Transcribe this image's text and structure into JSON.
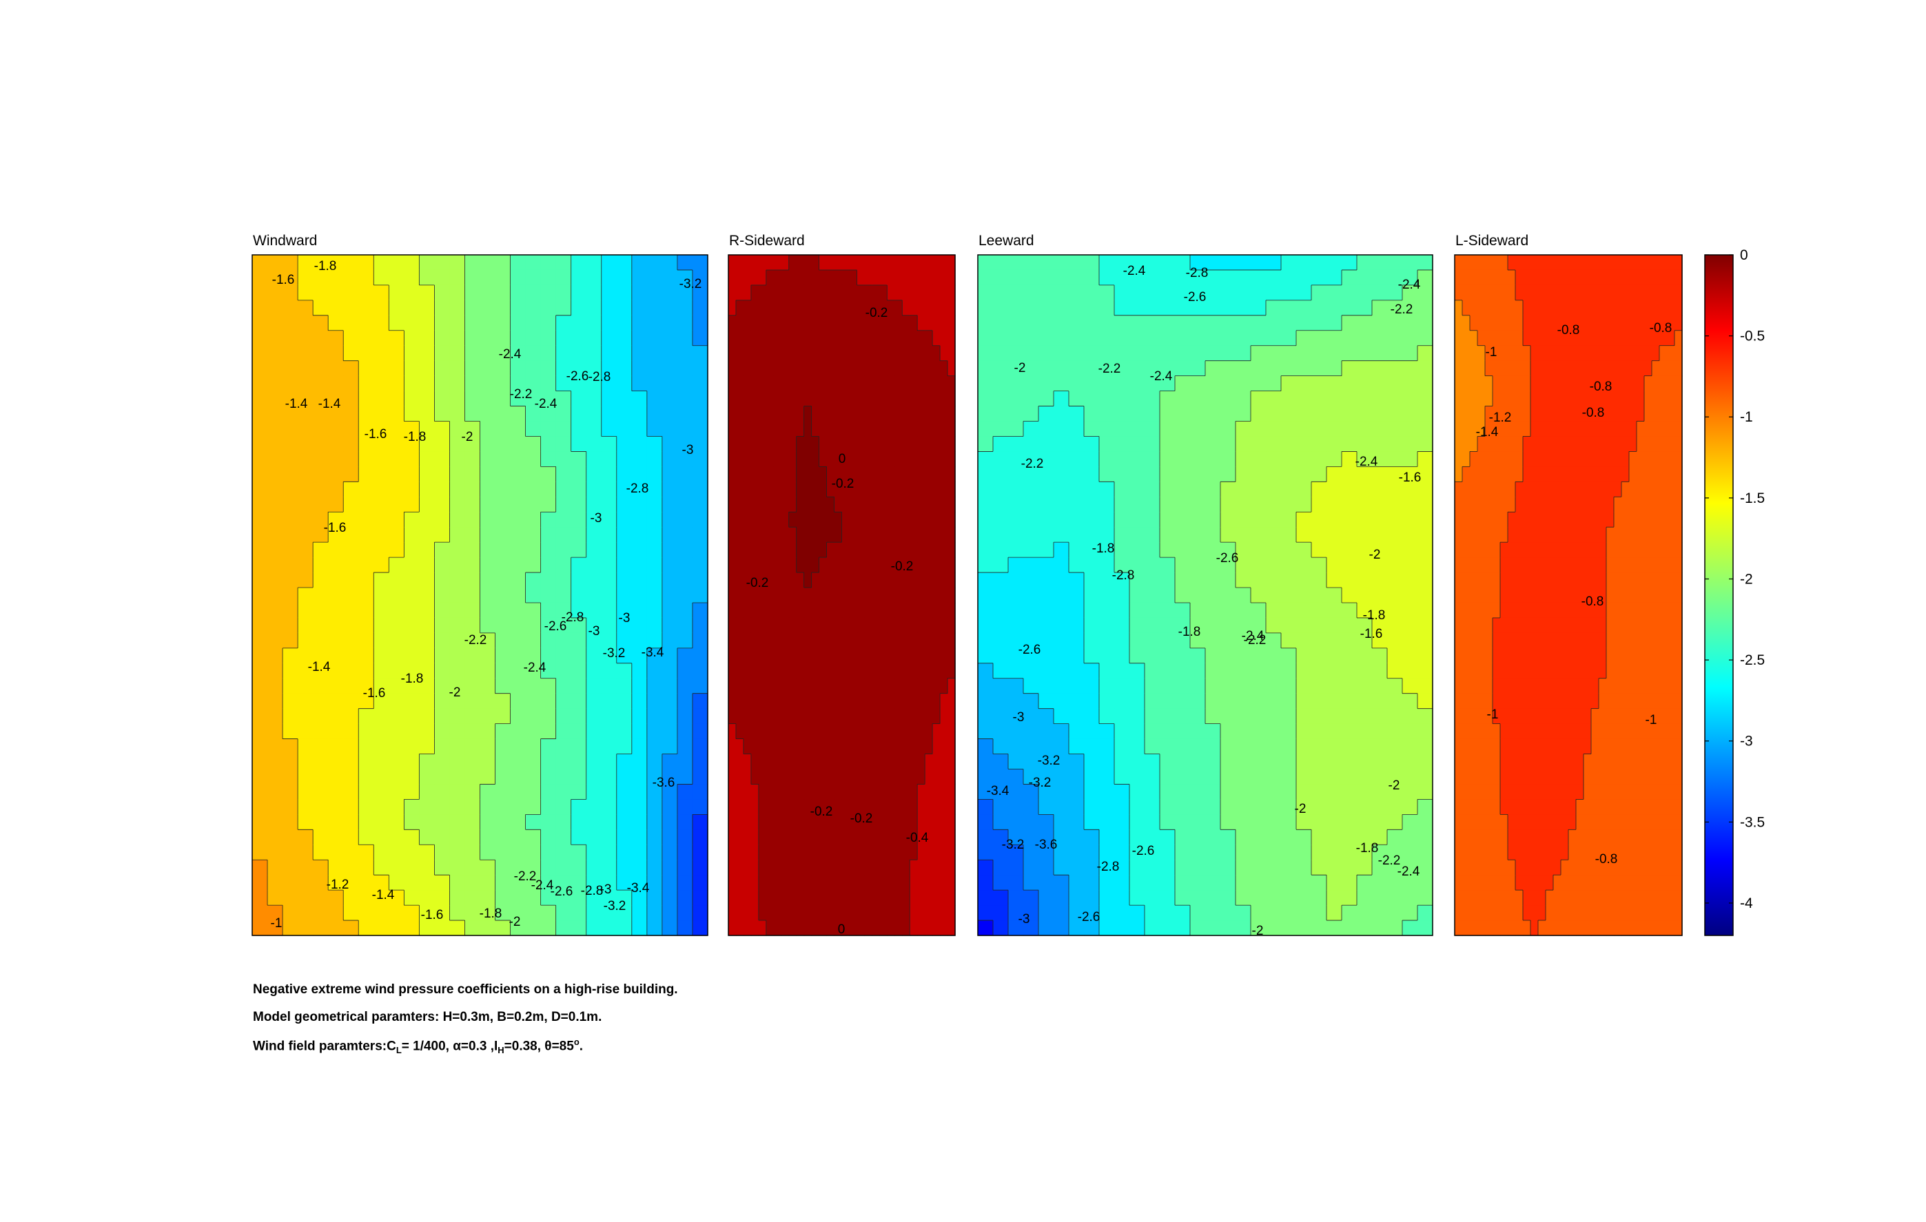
{
  "chart_data": [
    {
      "type": "heatmap",
      "title": "Windward",
      "grid": [
        [
          -1.4,
          -1.6,
          -1.8,
          -2.2,
          -2.4,
          -2.9,
          -3.2
        ],
        [
          -1.5,
          -1.4,
          -1.7,
          -2.2,
          -2.5,
          -2.9,
          -3.1
        ],
        [
          -1.45,
          -1.45,
          -1.6,
          -2.1,
          -2.3,
          -2.8,
          -3.0
        ],
        [
          -1.4,
          -1.55,
          -1.8,
          -2.1,
          -2.4,
          -2.8,
          -3.1
        ],
        [
          -1.45,
          -1.6,
          -1.8,
          -2.0,
          -2.3,
          -2.7,
          -3.4
        ],
        [
          -1.3,
          -1.6,
          -1.9,
          -2.1,
          -2.4,
          -2.8,
          -3.6
        ],
        [
          -1.2,
          -1.4,
          -1.6,
          -2.0,
          -2.3,
          -2.7,
          -3.6
        ]
      ],
      "contour_labels": [
        "-1.8",
        "-1.6",
        "-1.4",
        "-1.4",
        "-1.6",
        "-1.8",
        "-2",
        "-2.4",
        "-2.2",
        "-2.4",
        "-2.6",
        "-2.8",
        "-3.2",
        "-3",
        "-2.8",
        "-3",
        "-1.6",
        "-2.2",
        "-2.6",
        "-2.8",
        "-3",
        "-3",
        "-3.2",
        "-3.4",
        "-1.4",
        "-1.6",
        "-1.8",
        "-2",
        "-2.4",
        "-3.6",
        "-1.2",
        "-1.4",
        "-1.6",
        "-1.8",
        "-2",
        "-2.2",
        "-2.4",
        "-2.6",
        "-2.8",
        "-3",
        "-3.2",
        "-3.4",
        "-1"
      ]
    },
    {
      "type": "heatmap",
      "title": "R-Sideward",
      "grid": [
        [
          -0.35,
          -0.3,
          -0.35,
          -0.4
        ],
        [
          -0.25,
          -0.1,
          -0.15,
          -0.3
        ],
        [
          -0.2,
          -0.08,
          -0.12,
          -0.3
        ],
        [
          -0.25,
          -0.12,
          -0.15,
          -0.3
        ],
        [
          -0.4,
          -0.15,
          -0.2,
          -0.4
        ],
        [
          -0.4,
          -0.18,
          -0.2,
          -0.45
        ]
      ],
      "contour_labels": [
        "-0.2",
        "0",
        "-0.2",
        "-0.2",
        "-0.2",
        "-0.2",
        "-0.2",
        "-0.4",
        "0"
      ]
    },
    {
      "type": "heatmap",
      "title": "Leeward",
      "grid": [
        [
          -2.3,
          -2.4,
          -2.7,
          -2.8,
          -2.6,
          -2.3
        ],
        [
          -2.4,
          -2.5,
          -2.3,
          -2.1,
          -2.0,
          -2.0
        ],
        [
          -2.6,
          -2.7,
          -2.3,
          -2.0,
          -1.8,
          -1.8
        ],
        [
          -2.9,
          -2.8,
          -2.4,
          -2.2,
          -2.0,
          -1.8
        ],
        [
          -3.3,
          -3.0,
          -2.5,
          -2.2,
          -2.0,
          -2.1
        ],
        [
          -3.8,
          -3.1,
          -2.6,
          -2.3,
          -2.1,
          -2.4
        ]
      ],
      "contour_labels": [
        "-2.4",
        "-2.8",
        "-2.6",
        "-2.4",
        "-2.2",
        "-2",
        "-2.2",
        "-2.4",
        "-2.2",
        "-2.4",
        "-1.6",
        "-1.8",
        "-2.8",
        "-2.6",
        "-2",
        "-1.8",
        "-2.6",
        "-2.4",
        "-2.2",
        "-1.8",
        "-1.6",
        "-3",
        "-3.2",
        "-3.4",
        "-3.2",
        "-2",
        "-2",
        "-3.6",
        "-3.2",
        "-2.8",
        "-2.6",
        "-1.8",
        "-2.2",
        "-2.4",
        "-3",
        "-2.6",
        "-2"
      ]
    },
    {
      "type": "heatmap",
      "title": "L-Sideward",
      "grid": [
        [
          -1.0,
          -0.85,
          -0.8,
          -0.85
        ],
        [
          -1.3,
          -0.9,
          -0.85,
          -0.95
        ],
        [
          -1.0,
          -0.85,
          -0.9,
          -0.95
        ],
        [
          -1.0,
          -0.8,
          -0.9,
          -1.0
        ],
        [
          -1.05,
          -0.8,
          -0.95,
          -1.05
        ],
        [
          -1.1,
          -0.9,
          -1.0,
          -1.1
        ]
      ],
      "contour_labels": [
        "-0.8",
        "-0.8",
        "-1",
        "-0.8",
        "-1.2",
        "-1.4",
        "-0.8",
        "-0.8",
        "-1",
        "-1",
        "-0.8"
      ]
    }
  ],
  "colorbar": {
    "range": [
      -4.2,
      0
    ],
    "tick_labels": [
      "0",
      "-0.5",
      "-1",
      "-1.5",
      "-2",
      "-2.5",
      "-3",
      "-3.5",
      "-4"
    ],
    "colormap": "jet"
  },
  "caption": {
    "line1": "Negative extreme wind pressure coefficients on a high-rise building.",
    "line2": "Model geometrical paramters: H=0.3m, B=0.2m, D=0.1m.",
    "line3_prefix": "Wind field paramters:C",
    "line3_sub1": "L",
    "line3_mid1": "= 1/400, α=0.3 ,I",
    "line3_sub2": "H",
    "line3_mid2": "=0.38, θ=85",
    "line3_sup": "o",
    "line3_end": "."
  }
}
